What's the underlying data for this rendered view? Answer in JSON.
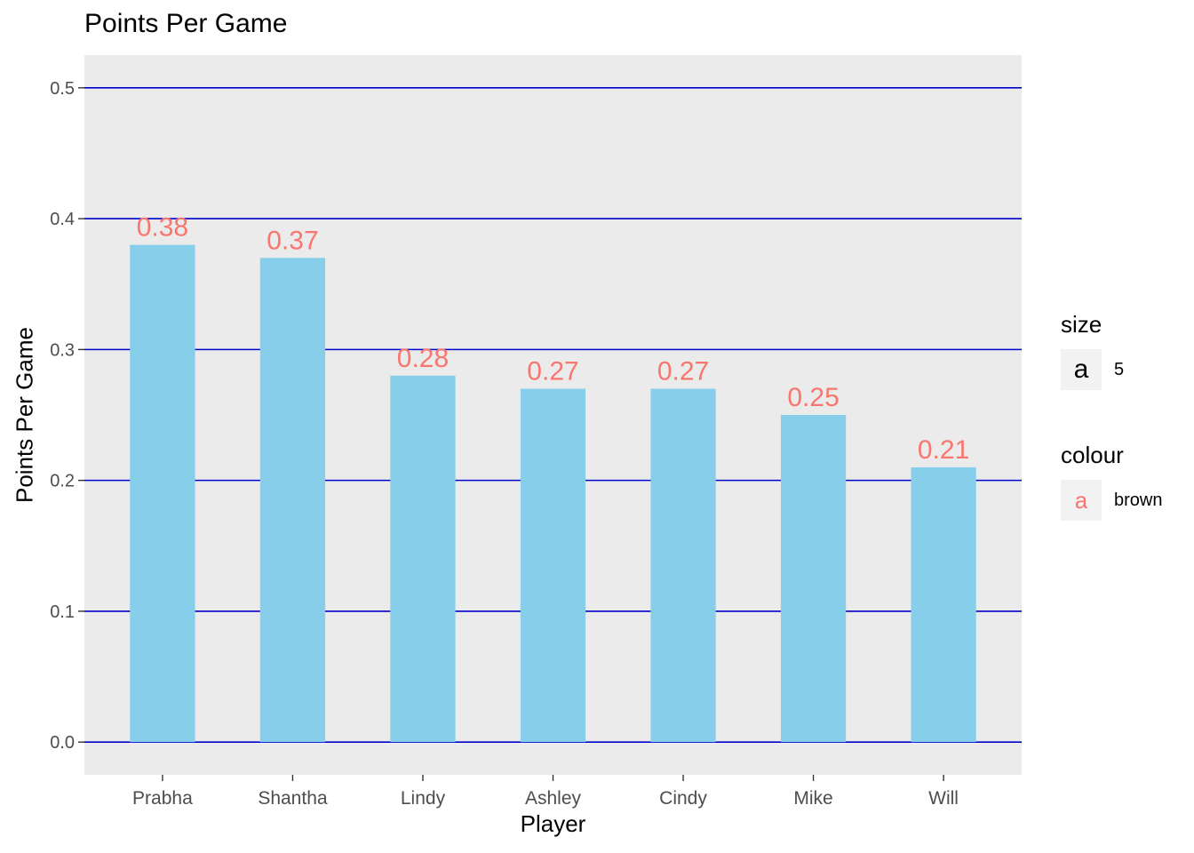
{
  "chart_data": {
    "type": "bar",
    "title": "Points Per Game",
    "xlabel": "Player",
    "ylabel": "Points Per Game",
    "categories": [
      "Prabha",
      "Shantha",
      "Lindy",
      "Ashley",
      "Cindy",
      "Mike",
      "Will"
    ],
    "values": [
      0.38,
      0.37,
      0.28,
      0.27,
      0.27,
      0.25,
      0.21
    ],
    "data_labels": [
      "0.38",
      "0.37",
      "0.28",
      "0.27",
      "0.27",
      "0.25",
      "0.21"
    ],
    "ylim": [
      -0.025,
      0.525
    ],
    "yticks": [
      0.0,
      0.1,
      0.2,
      0.3,
      0.4,
      0.5
    ],
    "ytick_labels": [
      "0.0",
      "0.1",
      "0.2",
      "0.3",
      "0.4",
      "0.5"
    ],
    "grid": true,
    "colors": {
      "bar": "#87ceeb",
      "grid": "#0000cd",
      "panel": "#ebebeb",
      "data_label": "#f8766d",
      "tick_text": "#4d4d4d"
    }
  },
  "legend": {
    "placement": "right",
    "size_title": "size",
    "size_key": "a",
    "size_label": "5",
    "colour_title": "colour",
    "colour_key": "a",
    "colour_label": "brown"
  }
}
